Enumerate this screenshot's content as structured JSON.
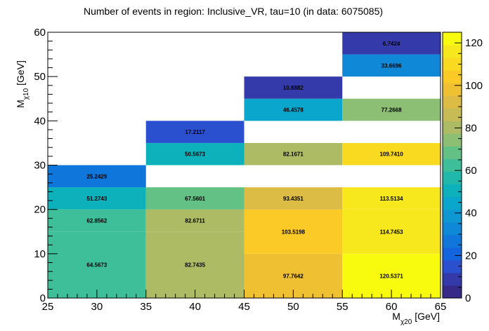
{
  "chart_data": {
    "type": "heatmap",
    "title": "Number of events in region: Inclusive_VR, tau=10 (in data: 6075085)",
    "xlabel": {
      "main": "M",
      "sub": "χ20",
      "unit": " [GeV]"
    },
    "ylabel": {
      "main": "M",
      "sub": "χ10",
      "unit": " [GeV]"
    },
    "xlim": [
      25,
      65
    ],
    "ylim": [
      0,
      60
    ],
    "zlim": [
      0,
      125
    ],
    "x_ticks": [
      25,
      30,
      35,
      40,
      45,
      50,
      55,
      60,
      65
    ],
    "y_ticks": [
      0,
      10,
      20,
      30,
      40,
      50,
      60
    ],
    "z_ticks": [
      0,
      20,
      40,
      60,
      80,
      100,
      120
    ],
    "palette": [
      "#352a87",
      "#343aaa",
      "#2a4fcf",
      "#1464df",
      "#0f77db",
      "#0f89d7",
      "#0d98d4",
      "#0aa6cc",
      "#0cb1bb",
      "#20b8aa",
      "#3ebe99",
      "#63c185",
      "#8cbf73",
      "#adbc64",
      "#c6bb55",
      "#dcbc44",
      "#efc032",
      "#fbca26",
      "#fad921",
      "#f7e81d",
      "#f9fb0e"
    ],
    "cells": [
      {
        "x0": 25,
        "x1": 35,
        "y0": 0,
        "y1": 15,
        "value": 64.5673,
        "label": "64.5673"
      },
      {
        "x0": 35,
        "x1": 45,
        "y0": 0,
        "y1": 15,
        "value": 82.7435,
        "label": "82.7435"
      },
      {
        "x0": 45,
        "x1": 55,
        "y0": 0,
        "y1": 10,
        "value": 97.7642,
        "label": "97.7642"
      },
      {
        "x0": 55,
        "x1": 65,
        "y0": 0,
        "y1": 10,
        "value": 120.5371,
        "label": "120.5371"
      },
      {
        "x0": 25,
        "x1": 35,
        "y0": 15,
        "y1": 20,
        "value": 62.8562,
        "label": "62.8562"
      },
      {
        "x0": 35,
        "x1": 45,
        "y0": 15,
        "y1": 20,
        "value": 82.6711,
        "label": "82.6711"
      },
      {
        "x0": 45,
        "x1": 55,
        "y0": 10,
        "y1": 20,
        "value": 103.5198,
        "label": "103.5198"
      },
      {
        "x0": 55,
        "x1": 65,
        "y0": 10,
        "y1": 20,
        "value": 114.7453,
        "label": "114.7453"
      },
      {
        "x0": 25,
        "x1": 35,
        "y0": 20,
        "y1": 25,
        "value": 51.2743,
        "label": "51.2743"
      },
      {
        "x0": 35,
        "x1": 45,
        "y0": 20,
        "y1": 25,
        "value": 67.5601,
        "label": "67.5601"
      },
      {
        "x0": 45,
        "x1": 55,
        "y0": 20,
        "y1": 25,
        "value": 93.4351,
        "label": "93.4351"
      },
      {
        "x0": 55,
        "x1": 65,
        "y0": 20,
        "y1": 25,
        "value": 113.5134,
        "label": "113.5134"
      },
      {
        "x0": 25,
        "x1": 35,
        "y0": 25,
        "y1": 30,
        "value": 25.2429,
        "label": "25.2429"
      },
      {
        "x0": 35,
        "x1": 45,
        "y0": 30,
        "y1": 35,
        "value": 50.5673,
        "label": "50.5673"
      },
      {
        "x0": 45,
        "x1": 55,
        "y0": 30,
        "y1": 35,
        "value": 82.1671,
        "label": "82.1671"
      },
      {
        "x0": 55,
        "x1": 65,
        "y0": 30,
        "y1": 35,
        "value": 109.741,
        "label": "109.7410"
      },
      {
        "x0": 35,
        "x1": 45,
        "y0": 35,
        "y1": 40,
        "value": 17.2117,
        "label": "17.2117"
      },
      {
        "x0": 45,
        "x1": 55,
        "y0": 40,
        "y1": 45,
        "value": 46.4578,
        "label": "46.4578"
      },
      {
        "x0": 55,
        "x1": 65,
        "y0": 40,
        "y1": 45,
        "value": 77.2668,
        "label": "77.2668"
      },
      {
        "x0": 45,
        "x1": 55,
        "y0": 45,
        "y1": 50,
        "value": 10.8882,
        "label": "10.8882"
      },
      {
        "x0": 55,
        "x1": 65,
        "y0": 50,
        "y1": 55,
        "value": 33.6696,
        "label": "33.6696"
      },
      {
        "x0": 55,
        "x1": 65,
        "y0": 55,
        "y1": 60,
        "value": 6.7424,
        "label": "6.7424"
      }
    ]
  }
}
